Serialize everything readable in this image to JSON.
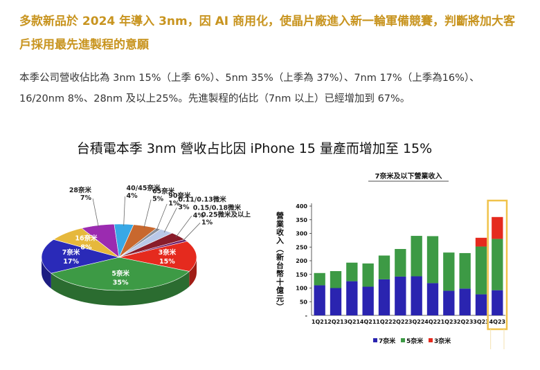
{
  "article": {
    "headline": "多款新品於 2024 年導入 3nm，因 AI 商用化，使晶片廠進入新一輪軍備競賽，判斷將加大客戶採用最先進製程的意願",
    "paragraph": "本季公司營收佔比為 3nm 15%（上季 6%）、5nm 35%（上季為 37%）、7nm 17%（上季為16%）、16/20nm 8%、28nm 及以上25%。先進製程的佔比（7nm 以上）已經增加到 67%。",
    "figure_title": "台積電本季 3nm 營收占比因 iPhone 15 量產而增加至 15%"
  },
  "colors": {
    "headline": "#c8941f",
    "n3": "#e52a1e",
    "n5": "#3d9a45",
    "n7": "#2a24b0",
    "highlight": "#f0c24a"
  },
  "chart_data": [
    {
      "type": "pie",
      "title": "",
      "slices": [
        {
          "label": "3奈米",
          "value": 15,
          "color": "#e52a1e"
        },
        {
          "label": "5奈米",
          "value": 35,
          "color": "#3d9a45"
        },
        {
          "label": "7奈米",
          "value": 17,
          "color": "#2a2ab8"
        },
        {
          "label": "16奈米",
          "value": 8,
          "color": "#e6b83c"
        },
        {
          "label": "28奈米",
          "value": 7,
          "color": "#9b2bb0"
        },
        {
          "label": "40/45奈米",
          "value": 4,
          "color": "#38a8e6"
        },
        {
          "label": "65奈米",
          "value": 5,
          "color": "#c8682e"
        },
        {
          "label": "90奈米",
          "value": 1,
          "color": "#8a8f9a"
        },
        {
          "label": "0.11/0.13微米",
          "value": 3,
          "color": "#b9c8e8"
        },
        {
          "label": "0.15/0.18微米",
          "value": 4,
          "color": "#8a1c2a"
        },
        {
          "label": "0.25微米及以上",
          "value": 1,
          "color": "#6a1a6a"
        }
      ]
    },
    {
      "type": "bar",
      "title": "7奈米及以下營業收入",
      "ylabel": "營業收入（新台幣十億元）",
      "xlabel": "",
      "ylim": [
        0,
        400
      ],
      "yticks": [
        50,
        100,
        150,
        200,
        250,
        300,
        350,
        400
      ],
      "stacked": true,
      "categories": [
        "1Q21",
        "2Q21",
        "3Q21",
        "4Q21",
        "1Q22",
        "2Q22",
        "3Q22",
        "4Q22",
        "1Q23",
        "2Q23",
        "3Q23",
        "4Q23"
      ],
      "series": [
        {
          "name": "7奈米",
          "values": [
            110,
            100,
            125,
            105,
            132,
            142,
            143,
            118,
            90,
            98,
            77,
            92
          ],
          "color": "#2a24b0"
        },
        {
          "name": "5奈米",
          "values": [
            45,
            62,
            68,
            85,
            87,
            101,
            148,
            172,
            140,
            130,
            175,
            188
          ],
          "color": "#3d9a45"
        },
        {
          "name": "3奈米",
          "values": [
            0,
            0,
            0,
            0,
            0,
            0,
            0,
            0,
            0,
            0,
            32,
            80
          ],
          "color": "#e52a1e"
        }
      ],
      "highlight": "4Q23"
    }
  ]
}
